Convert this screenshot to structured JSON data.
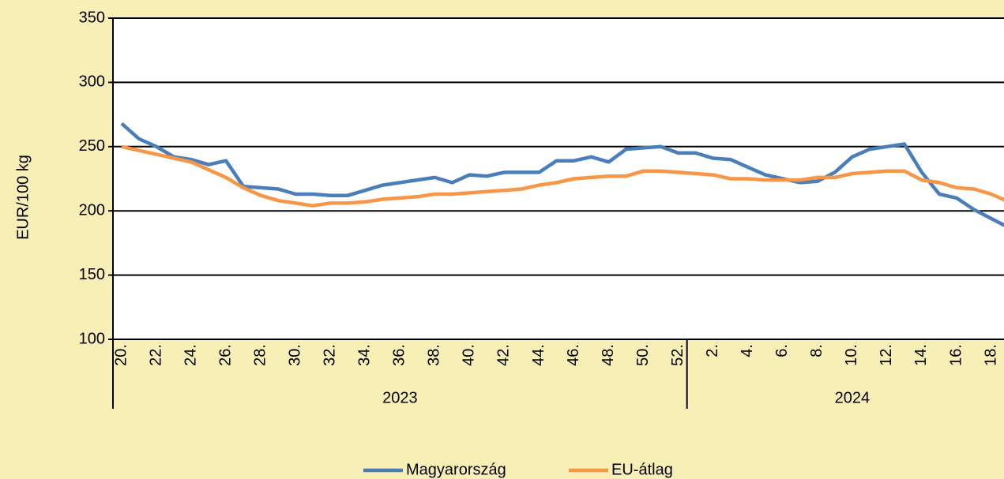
{
  "chart_data": {
    "type": "line",
    "y_label": "EUR/100 kg",
    "category_groups": [
      {
        "label": "2023",
        "categories": [
          "20.",
          null,
          "22.",
          null,
          "24.",
          null,
          "26.",
          null,
          "28.",
          null,
          "30.",
          null,
          "32.",
          null,
          "34.",
          null,
          "36.",
          null,
          "38.",
          null,
          "40.",
          null,
          "42.",
          null,
          "44.",
          null,
          "46.",
          null,
          "48.",
          null,
          "50.",
          null,
          "52."
        ]
      },
      {
        "label": "2024",
        "categories": [
          null,
          "2.",
          null,
          "4.",
          null,
          "6.",
          null,
          "8.",
          null,
          "10.",
          null,
          "12.",
          null,
          "14.",
          null,
          "16.",
          null,
          "18.",
          null
        ]
      }
    ],
    "series": [
      {
        "name": "Magyarország",
        "color": "#4a7ebb",
        "values": [
          268,
          256,
          250,
          242,
          240,
          236,
          239,
          219,
          218,
          217,
          213,
          213,
          212,
          212,
          216,
          220,
          222,
          224,
          226,
          222,
          228,
          227,
          230,
          230,
          230,
          239,
          239,
          242,
          238,
          248,
          249,
          250,
          245,
          245,
          241,
          240,
          234,
          228,
          225,
          222,
          223,
          230,
          242,
          248,
          250,
          252,
          230,
          213,
          210,
          201,
          194,
          187
        ]
      },
      {
        "name": "EU-átlag",
        "color": "#f79646",
        "values": [
          250,
          247,
          244,
          241,
          238,
          232,
          226,
          218,
          212,
          208,
          206,
          204,
          206,
          206,
          207,
          209,
          210,
          211,
          213,
          213,
          214,
          215,
          216,
          217,
          220,
          222,
          225,
          226,
          227,
          227,
          231,
          231,
          230,
          229,
          228,
          225,
          225,
          224,
          224,
          224,
          226,
          226,
          229,
          230,
          231,
          231,
          224,
          222,
          218,
          217,
          213,
          207
        ]
      }
    ],
    "ylim": [
      100,
      350
    ],
    "yticks": [
      100,
      150,
      200,
      250,
      300,
      350
    ],
    "grid": true,
    "legend": "bottom"
  }
}
